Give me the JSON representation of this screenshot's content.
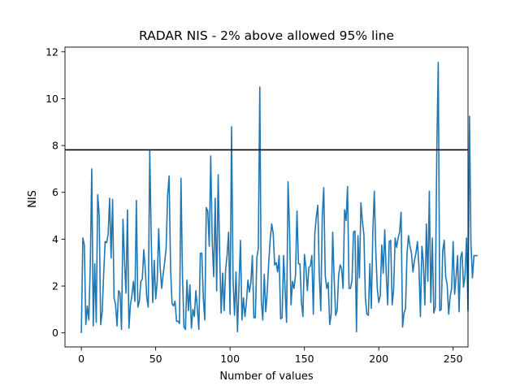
{
  "chart_data": {
    "type": "line",
    "title": "RADAR NIS - 2% above allowed 95% line",
    "xlabel": "Number of values",
    "ylabel": "NIS",
    "xlim": [
      -11,
      260
    ],
    "ylim": [
      -0.6,
      12.2
    ],
    "xticks": [
      0,
      50,
      100,
      150,
      200,
      250
    ],
    "yticks": [
      0,
      2,
      4,
      6,
      8,
      10,
      12
    ],
    "grid": false,
    "line_color": "#1f77b4",
    "threshold_color": "#000000",
    "threshold": 7.815,
    "series": [
      {
        "values": [
          0.02,
          4.05,
          3.75,
          0.35,
          1.15,
          0.55,
          2.9,
          7.0,
          0.3,
          2.95,
          0.45,
          5.9,
          5.0,
          0.35,
          0.9,
          2.5,
          3.9,
          3.85,
          4.2,
          5.75,
          3.2,
          5.7,
          1.5,
          1.2,
          0.3,
          1.8,
          1.7,
          0.15,
          4.85,
          3.1,
          1.7,
          5.25,
          0.2,
          1.2,
          1.6,
          2.2,
          1.35,
          5.65,
          1.1,
          1.35,
          2.2,
          2.3,
          3.55,
          2.7,
          1.5,
          1.1,
          7.8,
          4.0,
          1.3,
          3.1,
          1.45,
          2.2,
          4.45,
          2.8,
          1.9,
          2.5,
          3.0,
          3.6,
          5.85,
          6.7,
          2.75,
          1.25,
          1.15,
          1.35,
          0.5,
          0.5,
          0.4,
          6.6,
          2.45,
          0.25,
          0.15,
          2.25,
          0.95,
          2.05,
          0.2,
          1.0,
          0.7,
          1.8,
          1.05,
          0.15,
          3.4,
          3.4,
          1.5,
          0.55,
          5.35,
          5.2,
          3.7,
          7.55,
          3.9,
          2.4,
          5.75,
          1.8,
          6.75,
          3.35,
          0.85,
          2.55,
          0.95,
          2.7,
          3.3,
          4.3,
          0.8,
          8.8,
          2.3,
          0.75,
          2.6,
          0.05,
          2.05,
          3.95,
          0.55,
          1.5,
          0.7,
          1.3,
          2.25,
          1.75,
          2.15,
          3.3,
          0.65,
          0.65,
          3.2,
          3.6,
          10.5,
          1.4,
          0.55,
          2.5,
          0.9,
          1.75,
          3.0,
          4.0,
          4.65,
          4.25,
          2.9,
          3.0,
          2.6,
          3.3,
          0.6,
          0.65,
          3.3,
          1.85,
          0.45,
          6.45,
          4.4,
          1.2,
          2.2,
          1.9,
          2.45,
          5.2,
          2.95,
          2.95,
          1.3,
          0.7,
          3.35,
          2.8,
          1.8,
          2.8,
          2.85,
          3.3,
          0.8,
          4.25,
          4.95,
          5.45,
          2.45,
          0.95,
          4.95,
          6.2,
          2.45,
          1.9,
          2.15,
          0.35,
          0.8,
          4.3,
          2.3,
          0.75,
          0.95,
          2.45,
          2.9,
          2.75,
          1.9,
          5.25,
          4.8,
          6.25,
          1.9,
          1.9,
          2.25,
          4.3,
          4.35,
          0.05,
          4.15,
          2.35,
          5.55,
          4.75,
          4.2,
          1.5,
          0.8,
          0.75,
          2.95,
          1.05,
          4.3,
          6.05,
          3.5,
          1.9,
          1.3,
          1.6,
          3.75,
          2.55,
          4.4,
          2.55,
          1.2,
          3.9,
          3.95,
          1.2,
          1.85,
          4.05,
          3.65,
          4.05,
          4.3,
          5.15,
          0.25,
          0.85,
          1.05,
          3.4,
          4.15,
          3.7,
          3.4,
          2.6,
          3.1,
          3.4,
          3.9,
          2.85,
          0.7,
          3.7,
          3.0,
          1.2,
          4.65,
          2.2,
          6.05,
          1.3,
          4.05,
          0.85,
          1.1,
          7.7,
          11.55,
          0.95,
          1.0,
          3.5,
          3.95,
          2.4,
          2.05,
          0.8,
          1.55,
          1.9,
          3.9,
          1.65,
          2.4,
          3.3,
          0.9,
          3.2,
          3.45,
          1.95,
          2.45,
          4.05,
          0.95,
          9.25,
          3.75,
          2.35,
          3.3,
          3.3,
          3.3
        ]
      }
    ]
  }
}
